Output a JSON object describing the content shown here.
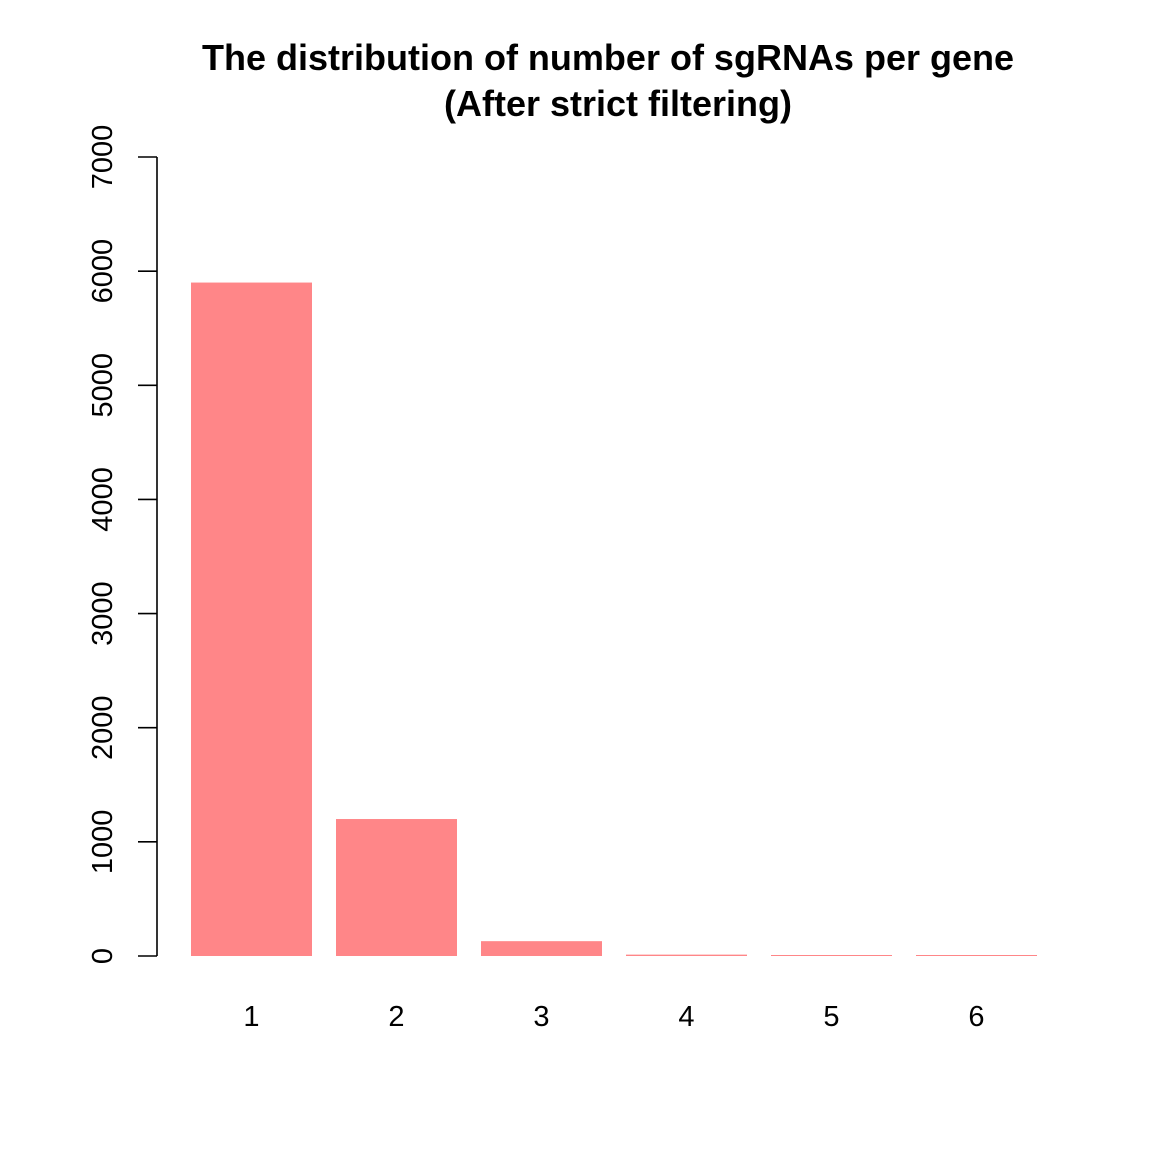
{
  "chart_data": {
    "type": "bar",
    "title": "The distribution of number of sgRNAs per gene",
    "subtitle": "(After strict filtering)",
    "categories": [
      "1",
      "2",
      "3",
      "4",
      "5",
      "6"
    ],
    "values": [
      5900,
      1200,
      130,
      12,
      3,
      1
    ],
    "ylim": [
      0,
      7000
    ],
    "yticks": [
      0,
      1000,
      2000,
      3000,
      4000,
      5000,
      6000,
      7000
    ],
    "bar_color": "#FF8688",
    "grid": false,
    "legend": "none"
  }
}
